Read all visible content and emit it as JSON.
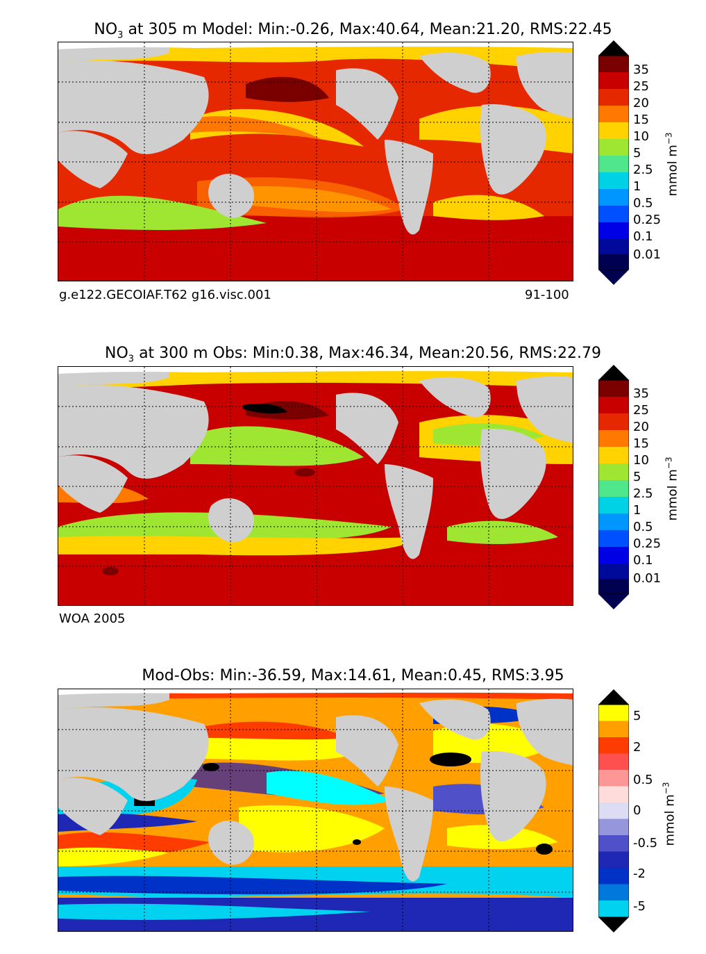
{
  "panels": [
    {
      "title_prefix": "NO",
      "title_sub": "3",
      "title_rest": " at 305 m Model: Min:-0.26, Max:40.64, Mean:21.20, RMS:22.45",
      "footnote_left": "g.e122.GECOIAF.T62 g16.visc.001",
      "footnote_right": "91-100"
    },
    {
      "title_prefix": "NO",
      "title_sub": "3",
      "title_rest": " at 300 m Obs: Min:0.38, Max:46.34, Mean:20.56, RMS:22.79",
      "footnote_left": "WOA 2005",
      "footnote_right": ""
    },
    {
      "title_prefix": "",
      "title_sub": "",
      "title_rest": "Mod-Obs: Min:-36.59, Max:14.61, Mean:0.45, RMS:3.95",
      "footnote_left": "",
      "footnote_right": ""
    }
  ],
  "colorbar_abs": {
    "labels": [
      "35",
      "25",
      "20",
      "15",
      "10",
      "5",
      "2.5",
      "1",
      "0.5",
      "0.25",
      "0.1",
      "0.01"
    ],
    "colors": [
      "#000000",
      "#7a0000",
      "#c80000",
      "#e62800",
      "#ff7800",
      "#ffd200",
      "#9ee632",
      "#50e68c",
      "#00d2e6",
      "#0096ff",
      "#0050ff",
      "#0000e6",
      "#000a9a",
      "#000050"
    ],
    "unit": "mmol m",
    "unit_sup": "−3"
  },
  "colorbar_diff": {
    "labels": [
      "5",
      "2",
      "0.5",
      "0",
      "-0.5",
      "-2",
      "-5"
    ],
    "colors": [
      "#000000",
      "#ffff00",
      "#ffa000",
      "#ff3c00",
      "#ff5050",
      "#ff9696",
      "#ffdcdc",
      "#dcdcf5",
      "#9696dc",
      "#5050c8",
      "#1e28b4",
      "#0032c8",
      "#0078dc",
      "#00d2f0",
      "#00ffff"
    ],
    "unit": "mmol m",
    "unit_sup": "−3"
  },
  "map": {
    "land_color": "#cfcfcf",
    "sea_ice_color": "#ffffff",
    "grid_style": "dotted"
  }
}
